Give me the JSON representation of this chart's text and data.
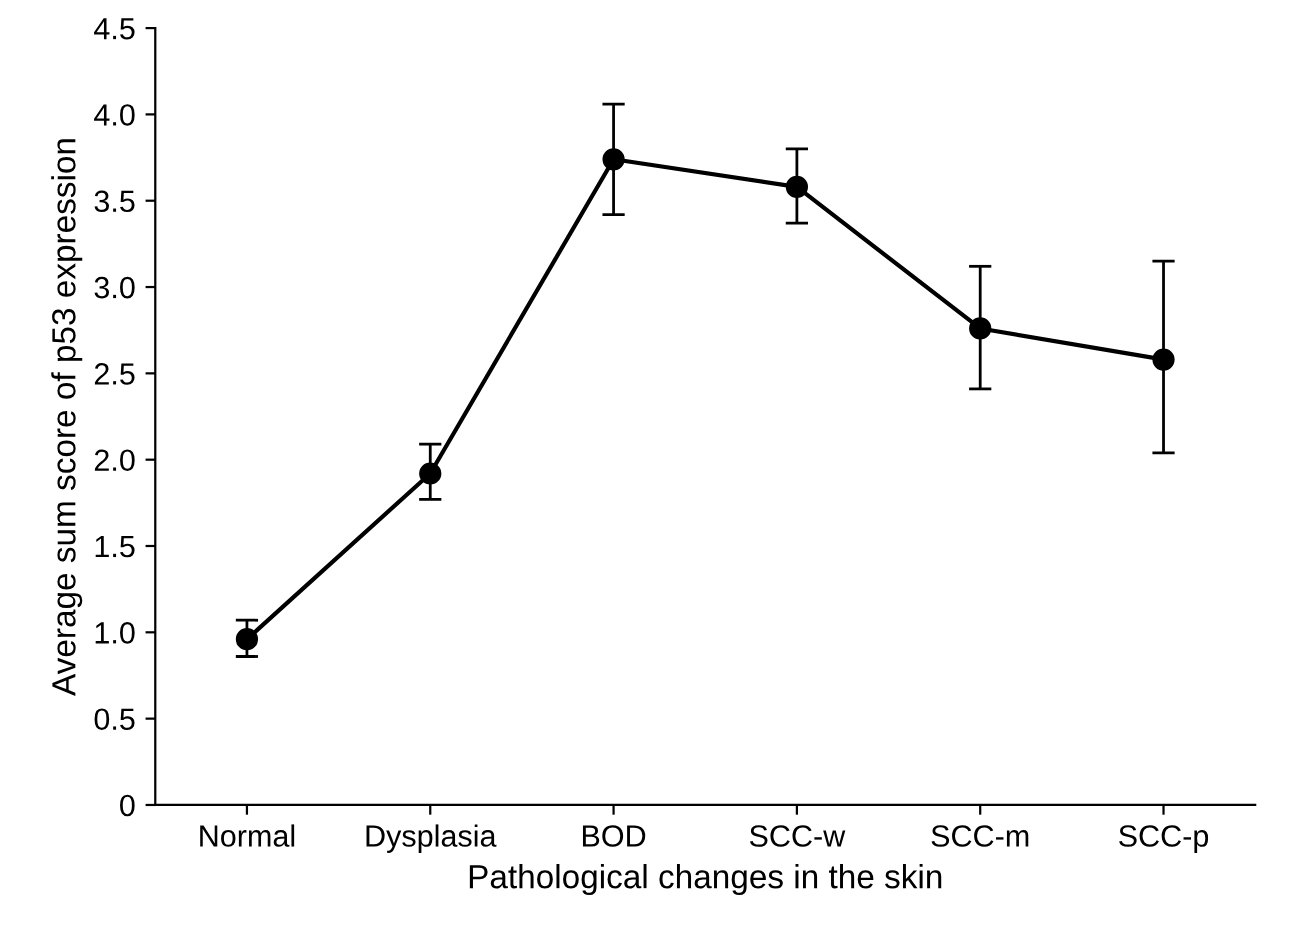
{
  "chart_data": {
    "type": "line",
    "xlabel": "Pathological changes in the skin",
    "ylabel": "Average sum score of p53 expression",
    "categories": [
      "Normal",
      "Dysplasia",
      "BOD",
      "SCC-w",
      "SCC-m",
      "SCC-p"
    ],
    "series": [
      {
        "color": "#000000",
        "values": [
          0.96,
          1.92,
          3.74,
          3.58,
          2.76,
          2.58
        ],
        "errors": [
          [
            0.86,
            1.07
          ],
          [
            1.77,
            2.09
          ],
          [
            3.42,
            4.06
          ],
          [
            3.37,
            3.8
          ],
          [
            2.41,
            3.12
          ],
          [
            2.04,
            3.15
          ]
        ]
      }
    ],
    "ylim": [
      0,
      4.5
    ],
    "yticks": [
      {
        "value": 0,
        "label": "0"
      },
      {
        "value": 0.5,
        "label": "0.5"
      },
      {
        "value": 1,
        "label": "1.0"
      },
      {
        "value": 1.5,
        "label": "1.5"
      },
      {
        "value": 2,
        "label": "2.0"
      },
      {
        "value": 2.5,
        "label": "2.5"
      },
      {
        "value": 3,
        "label": "3.0"
      },
      {
        "value": 3.5,
        "label": "3.5"
      },
      {
        "value": 4,
        "label": "4.0"
      },
      {
        "value": 4.5,
        "label": "4.5"
      }
    ],
    "marker": "circle",
    "line_style": "solid",
    "grid": false,
    "legend": false
  }
}
